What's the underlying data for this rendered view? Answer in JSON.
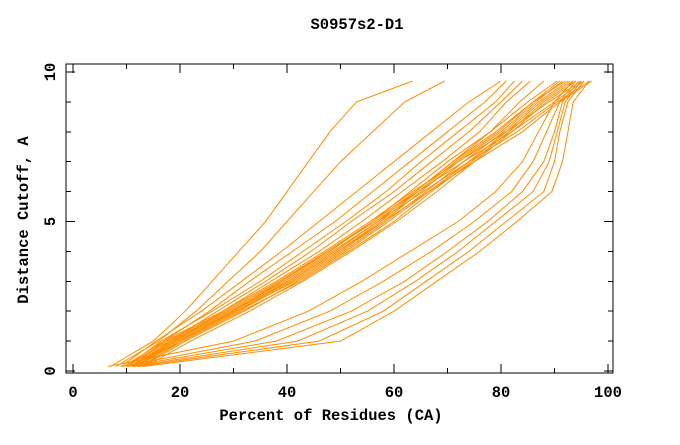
{
  "window": {
    "background": "#ffffff"
  },
  "chart_data": {
    "type": "line",
    "title": "S0957s2-D1",
    "xlabel": "Percent of Residues (CA)",
    "ylabel": "Distance Cutoff, A",
    "xlim": [
      0,
      100
    ],
    "ylim": [
      0,
      10
    ],
    "grid": false,
    "legend": "none",
    "frame": "full-box-inward-ticks",
    "axis_color": "#000000",
    "line_color": "#ff8c00",
    "x_major_ticks": [
      0,
      20,
      40,
      60,
      80,
      100
    ],
    "x_minor_ticks": [
      10,
      30,
      50,
      70,
      90
    ],
    "x_tick_labels": [
      "0",
      "20",
      "40",
      "60",
      "80",
      "100"
    ],
    "y_major_ticks": [
      0,
      5,
      10
    ],
    "y_minor_ticks": [
      1,
      2,
      3,
      4,
      6,
      7,
      8,
      9
    ],
    "y_tick_labels": [
      "0",
      "5",
      "10"
    ],
    "series_format": "percent_of_residues_at_each_distance_anchor",
    "distance_anchors": [
      0.15,
      1,
      2,
      3,
      4,
      5,
      6,
      7,
      8,
      9,
      9.7
    ],
    "series": [
      [
        7,
        15,
        21,
        26,
        31,
        36,
        40,
        44,
        48,
        53,
        63.5
      ],
      [
        8,
        16,
        23,
        29,
        35,
        40,
        45,
        50,
        56,
        62,
        69.5
      ],
      [
        9,
        15.5,
        24,
        31.5,
        39,
        46,
        53,
        60,
        67,
        74,
        80
      ],
      [
        11,
        17,
        25.5,
        33,
        41,
        49,
        56,
        63,
        70,
        77,
        81
      ],
      [
        10,
        16.5,
        26,
        35,
        43,
        51,
        58.5,
        65,
        72,
        79,
        82.5
      ],
      [
        12,
        18,
        27,
        36,
        44.5,
        52,
        60,
        67,
        74,
        80,
        84
      ],
      [
        11.5,
        19,
        28,
        37,
        46,
        54,
        61.5,
        69,
        76,
        81,
        85.5
      ],
      [
        13,
        20,
        30,
        39,
        47.5,
        56,
        64,
        71,
        78,
        83.5,
        88
      ],
      [
        10,
        18,
        29,
        39,
        48,
        56,
        63,
        70,
        78,
        85,
        90.5
      ],
      [
        11,
        19,
        30,
        40,
        49,
        57,
        64,
        71,
        79,
        86,
        91
      ],
      [
        12,
        20,
        31,
        41,
        50,
        58,
        65,
        72,
        80,
        86.5,
        91.5
      ],
      [
        10.5,
        18.5,
        29.5,
        40.5,
        49.5,
        57.5,
        64.5,
        71.5,
        79.5,
        86,
        92
      ],
      [
        11.5,
        19.5,
        30.5,
        41.5,
        50.5,
        58.5,
        66,
        73,
        80.5,
        87,
        92.5
      ],
      [
        13,
        21,
        32,
        42,
        51,
        59,
        66.5,
        74,
        81,
        87.5,
        93
      ],
      [
        12.5,
        20.5,
        31.5,
        42.5,
        51.5,
        60,
        67,
        74.5,
        81.5,
        88,
        93.5
      ],
      [
        13.5,
        22,
        33,
        43,
        52,
        60.5,
        68,
        75,
        82,
        88.5,
        94
      ],
      [
        9.5,
        17,
        28,
        38,
        47,
        55.5,
        63.5,
        72,
        81,
        89,
        95
      ],
      [
        10,
        17.5,
        28.5,
        38.5,
        47.5,
        56.5,
        64.5,
        73,
        82,
        90,
        95.5
      ],
      [
        11,
        18.5,
        29.5,
        39.5,
        48.5,
        57,
        65.5,
        74,
        83,
        90.5,
        96.5
      ],
      [
        12,
        19.5,
        30.5,
        40.5,
        49.5,
        58,
        66.5,
        75,
        84,
        91,
        97
      ],
      [
        13,
        50,
        60,
        68,
        76,
        83,
        89.5,
        91.5,
        92.5,
        93.5,
        96.5
      ],
      [
        12,
        46,
        58,
        66,
        74,
        81,
        88,
        90,
        91,
        92.5,
        95.5
      ],
      [
        11,
        42,
        55,
        64,
        72,
        79,
        86,
        89,
        90.5,
        92,
        95
      ],
      [
        10,
        38,
        52,
        62,
        70,
        77.5,
        84,
        88,
        90,
        91.5,
        94.5
      ],
      [
        9,
        34,
        48,
        58,
        67,
        75,
        82,
        86,
        88.5,
        91,
        94
      ],
      [
        6.5,
        30,
        44,
        54,
        63,
        72,
        79,
        84,
        87,
        90,
        93.5
      ]
    ]
  }
}
